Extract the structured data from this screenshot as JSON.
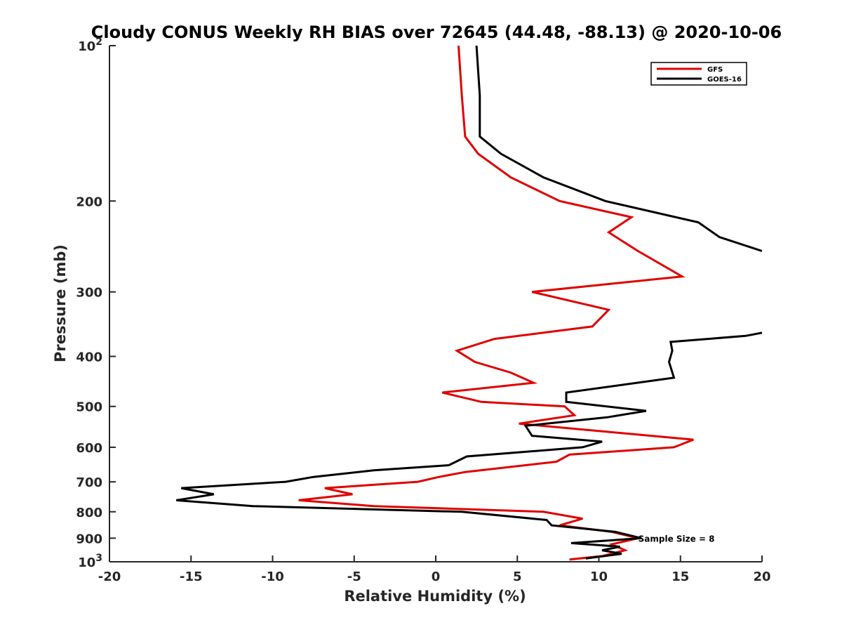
{
  "chart_data": {
    "type": "line",
    "title": "Cloudy CONUS Weekly RH BIAS over 72645 (44.48, -88.13) @ 2020-10-06",
    "xlabel": "Relative Humidity (%)",
    "ylabel": "Pressure (mb)",
    "xlim": [
      -20,
      20
    ],
    "ylim": [
      100,
      1000
    ],
    "yscale": "log",
    "y_reversed": true,
    "grid": false,
    "legend_position": "top-right",
    "x_ticks": [
      -20,
      -15,
      -10,
      -5,
      0,
      5,
      10,
      15,
      20
    ],
    "y_ticks": [
      {
        "value": 100,
        "base": "10",
        "exp": "2"
      },
      {
        "value": 200,
        "label": "200"
      },
      {
        "value": 300,
        "label": "300"
      },
      {
        "value": 400,
        "label": "400"
      },
      {
        "value": 500,
        "label": "500"
      },
      {
        "value": 600,
        "label": "600"
      },
      {
        "value": 700,
        "label": "700"
      },
      {
        "value": 800,
        "label": "800"
      },
      {
        "value": 900,
        "label": "900"
      },
      {
        "value": 1000,
        "base": "10",
        "exp": "3"
      }
    ],
    "series": [
      {
        "name": "GFS",
        "color": "#e00000",
        "points": [
          [
            1.4,
            100
          ],
          [
            1.6,
            125
          ],
          [
            1.8,
            150
          ],
          [
            2.6,
            162
          ],
          [
            4.6,
            180
          ],
          [
            7.6,
            200
          ],
          [
            12.0,
            215
          ],
          [
            10.6,
            230
          ],
          [
            12.4,
            250
          ],
          [
            15.1,
            280
          ],
          [
            5.9,
            300
          ],
          [
            10.6,
            325
          ],
          [
            9.6,
            350
          ],
          [
            3.6,
            370
          ],
          [
            1.3,
            390
          ],
          [
            2.4,
            410
          ],
          [
            4.6,
            430
          ],
          [
            6.0,
            450
          ],
          [
            0.4,
            470
          ],
          [
            2.8,
            490
          ],
          [
            7.9,
            500
          ],
          [
            8.5,
            520
          ],
          [
            5.1,
            540
          ],
          [
            15.8,
            580
          ],
          [
            14.6,
            600
          ],
          [
            8.2,
            620
          ],
          [
            7.4,
            640
          ],
          [
            1.8,
            670
          ],
          [
            0.2,
            685
          ],
          [
            -1.1,
            700
          ],
          [
            -6.8,
            720
          ],
          [
            -5.1,
            740
          ],
          [
            -8.4,
            760
          ],
          [
            -3.8,
            780
          ],
          [
            6.6,
            800
          ],
          [
            9.0,
            825
          ],
          [
            7.6,
            850
          ],
          [
            10.8,
            875
          ],
          [
            12.4,
            900
          ],
          [
            10.8,
            925
          ],
          [
            11.6,
            950
          ],
          [
            10.2,
            975
          ],
          [
            8.2,
            990
          ]
        ]
      },
      {
        "name": "GOES-16",
        "color": "#000000",
        "points": [
          [
            2.5,
            100
          ],
          [
            2.7,
            125
          ],
          [
            2.7,
            150
          ],
          [
            4.0,
            162
          ],
          [
            6.6,
            180
          ],
          [
            10.4,
            200
          ],
          [
            16.1,
            220
          ],
          [
            17.4,
            235
          ],
          [
            20.0,
            250
          ],
          [
            null,
            300
          ],
          [
            20.0,
            360
          ],
          [
            19.0,
            365
          ],
          [
            14.4,
            375
          ],
          [
            14.5,
            390
          ],
          [
            14.3,
            410
          ],
          [
            14.6,
            440
          ],
          [
            8.0,
            470
          ],
          [
            8.0,
            490
          ],
          [
            12.9,
            510
          ],
          [
            10.5,
            525
          ],
          [
            5.5,
            545
          ],
          [
            5.9,
            570
          ],
          [
            10.2,
            585
          ],
          [
            9.0,
            600
          ],
          [
            1.9,
            625
          ],
          [
            0.8,
            650
          ],
          [
            -3.8,
            665
          ],
          [
            -7.5,
            685
          ],
          [
            -9.2,
            700
          ],
          [
            -15.6,
            720
          ],
          [
            -13.6,
            740
          ],
          [
            -15.9,
            760
          ],
          [
            -11.2,
            780
          ],
          [
            1.6,
            800
          ],
          [
            6.8,
            830
          ],
          [
            7.1,
            850
          ],
          [
            11.0,
            875
          ],
          [
            12.6,
            900
          ],
          [
            8.3,
            920
          ],
          [
            11.3,
            935
          ],
          [
            10.2,
            950
          ],
          [
            11.4,
            965
          ],
          [
            9.2,
            985
          ]
        ]
      }
    ],
    "annotations": [
      {
        "text": "Sample Size = 8",
        "x": 12.5,
        "y": 900
      }
    ]
  }
}
